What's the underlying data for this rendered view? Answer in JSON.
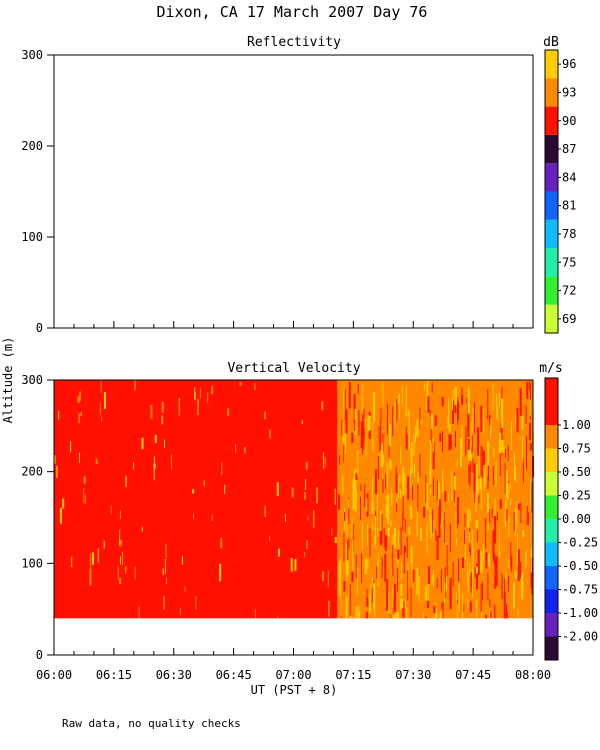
{
  "figure": {
    "title": "Dixon, CA 17 March 2007  Day  76",
    "ylabel": "Altitude (m)",
    "xlabel": "UT  (PST + 8)",
    "footnote": "Raw data, no quality checks"
  },
  "chart_data": [
    {
      "type": "heatmap",
      "title": "Reflectivity",
      "xlabel": "UT  (PST + 8)",
      "ylabel": "Altitude (m)",
      "x_tick_labels": [
        "06:00",
        "06:15",
        "06:30",
        "06:45",
        "07:00",
        "07:15",
        "07:30",
        "07:45",
        "08:00"
      ],
      "xlim": [
        "06:00",
        "08:00"
      ],
      "y_ticks": [
        0,
        100,
        200,
        300
      ],
      "ylim": [
        0,
        300
      ],
      "data": [],
      "colorbar": {
        "unit": "dB",
        "ticks": [
          "69",
          "72",
          "75",
          "78",
          "81",
          "84",
          "87",
          "90",
          "93",
          "96"
        ],
        "colors": [
          "#ccff33",
          "#33ee33",
          "#22eeaa",
          "#11bbff",
          "#1166ff",
          "#6622bb",
          "#2a0b33",
          "#ff1100",
          "#ff8800",
          "#ffcc00"
        ]
      }
    },
    {
      "type": "heatmap",
      "title": "Vertical Velocity",
      "xlabel": "UT  (PST + 8)",
      "ylabel": "Altitude (m)",
      "x_tick_labels": [
        "06:00",
        "06:15",
        "06:30",
        "06:45",
        "07:00",
        "07:15",
        "07:30",
        "07:45",
        "08:00"
      ],
      "xlim": [
        "06:00",
        "08:00"
      ],
      "y_ticks": [
        0,
        100,
        200,
        300
      ],
      "ylim": [
        0,
        300
      ],
      "data_altitude_range": [
        40,
        300
      ],
      "regimes": [
        {
          "time_range": [
            "06:00",
            "07:11"
          ],
          "dominant_value": 1.0,
          "dominant_color": "#ff1100",
          "secondary": [
            "#ff8800",
            "#ffcc00"
          ]
        },
        {
          "time_range": [
            "07:11",
            "08:00"
          ],
          "dominant_value": 0.75,
          "dominant_color": "#ff8800",
          "secondary": [
            "#ffcc00",
            "#ff1100"
          ]
        }
      ],
      "colorbar": {
        "unit": "m/s",
        "ticks": [
          "-2.00",
          "-1.00",
          "-0.75",
          "-0.50",
          "-0.25",
          "0.00",
          "0.25",
          "0.50",
          "0.75",
          "1.00"
        ],
        "colors": [
          "#2a0b33",
          "#6622bb",
          "#1122ee",
          "#1166ff",
          "#11bbff",
          "#22eeaa",
          "#33ee33",
          "#ccff33",
          "#ffcc00",
          "#ff8800",
          "#ff1100",
          "#ff1100"
        ]
      }
    }
  ]
}
